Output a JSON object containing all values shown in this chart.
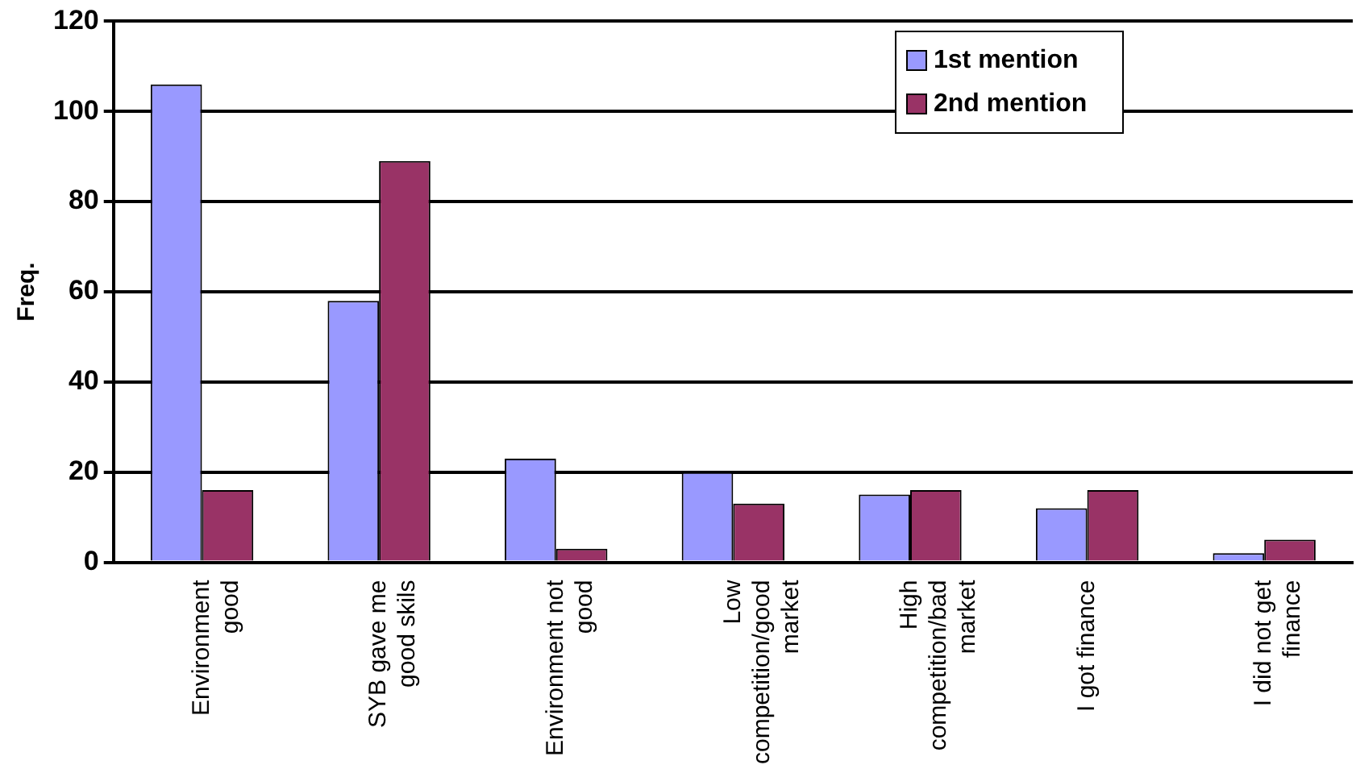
{
  "chart_data": {
    "type": "bar",
    "ylabel": "Freq.",
    "categories": [
      "Environment good",
      "SYB gave me good skils",
      "Environment not good",
      "Low competition/good market",
      "High competition/bad market",
      "I got finance",
      "I did not get finance"
    ],
    "series": [
      {
        "name": "1st mention",
        "color": "#9999ff",
        "values": [
          106,
          58,
          23,
          20,
          15,
          12,
          2
        ]
      },
      {
        "name": "2nd mention",
        "color": "#993366",
        "values": [
          16,
          89,
          3,
          13,
          16,
          16,
          5
        ]
      }
    ],
    "ylim": [
      0,
      120
    ],
    "yticks": [
      0,
      20,
      40,
      60,
      80,
      100,
      120
    ],
    "grid": "y",
    "legend": "top right"
  }
}
